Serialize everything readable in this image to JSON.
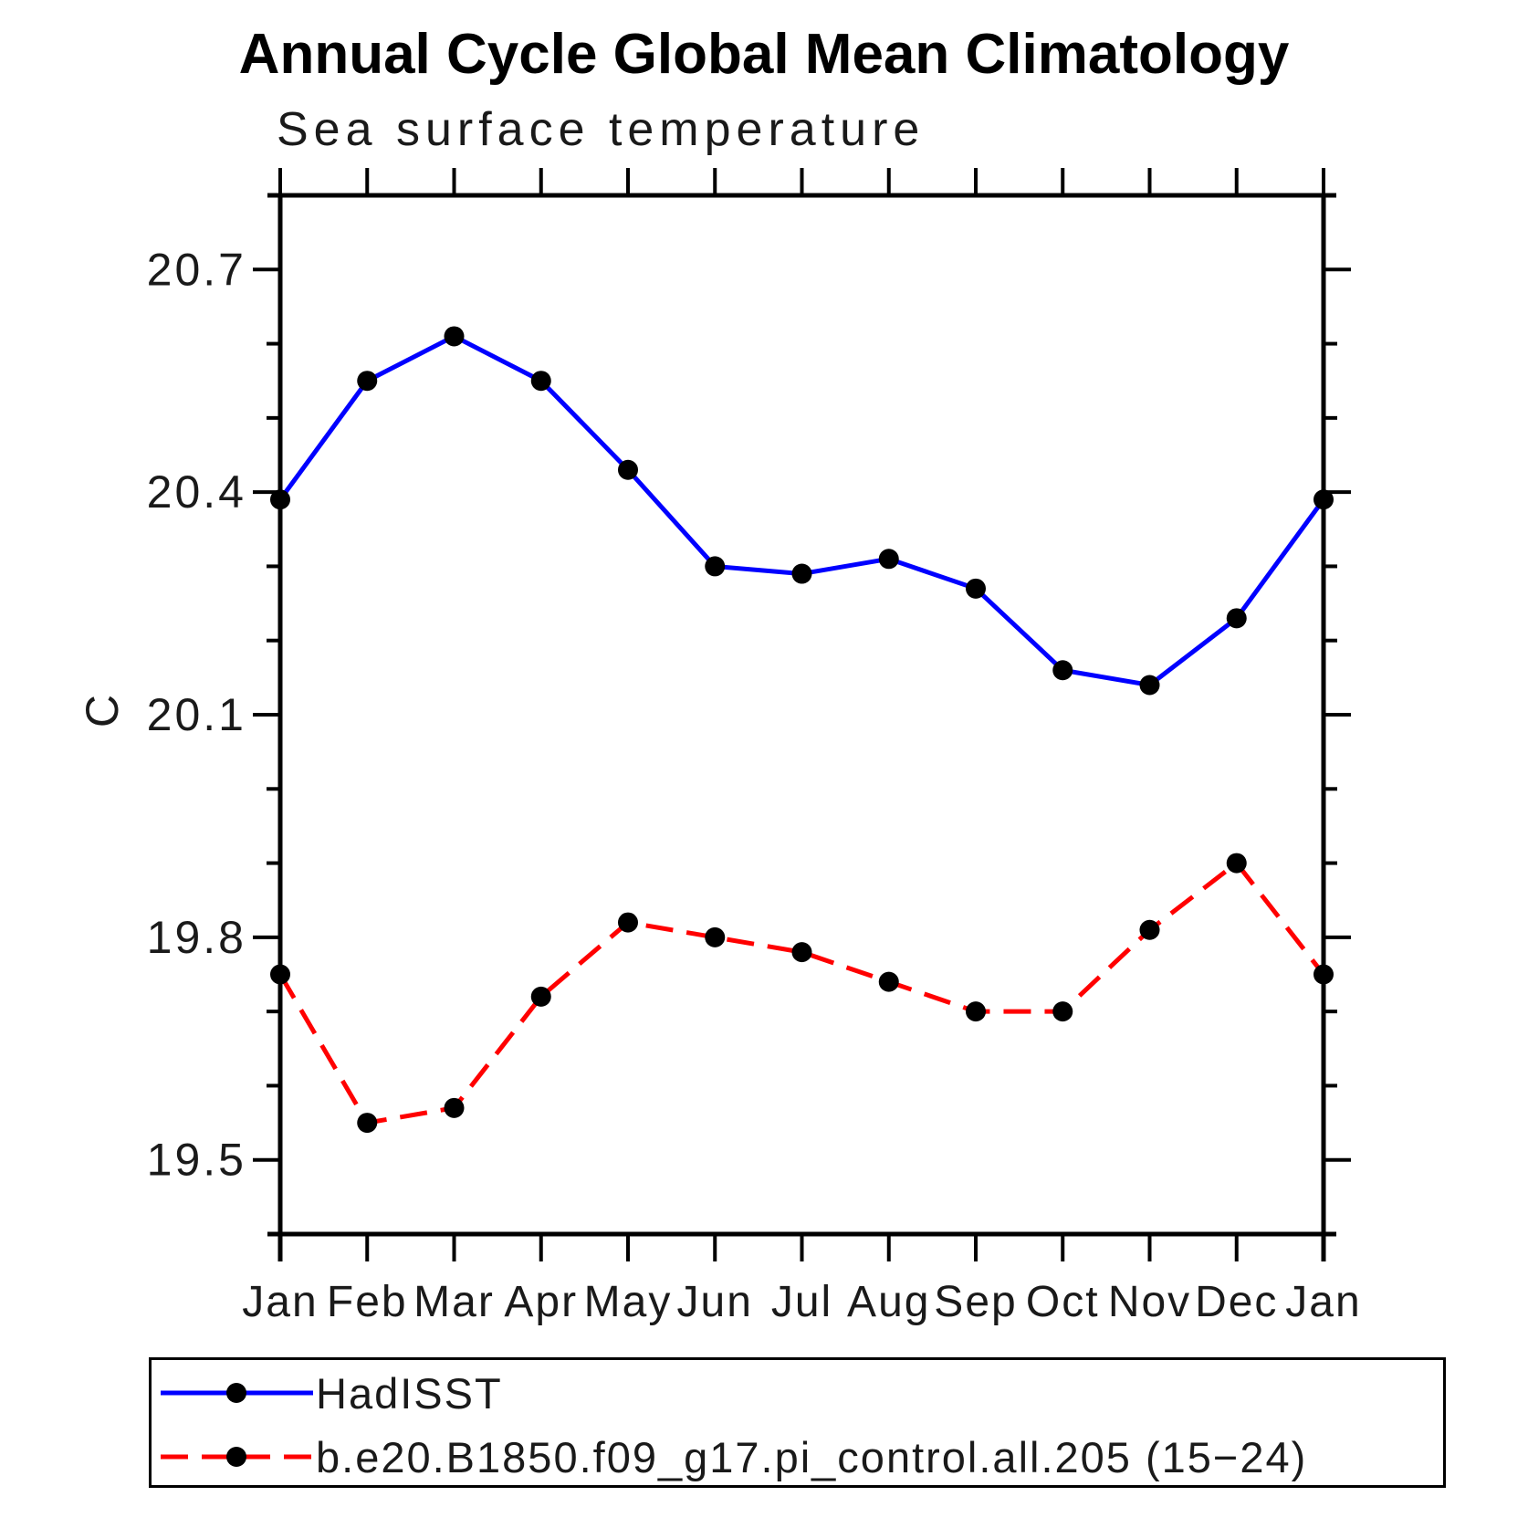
{
  "header": {
    "title": "Annual Cycle Global Mean Climatology",
    "subtitle": "Sea surface temperature"
  },
  "chart_data": {
    "type": "line",
    "title": "Annual Cycle Global Mean Climatology",
    "subtitle": "Sea surface temperature",
    "ylabel": "C",
    "xlabel": "",
    "grid": false,
    "legend_position": "bottom",
    "categories": [
      "Jan",
      "Feb",
      "Mar",
      "Apr",
      "May",
      "Jun",
      "Jul",
      "Aug",
      "Sep",
      "Oct",
      "Nov",
      "Dec",
      "Jan"
    ],
    "ylim": [
      19.4,
      20.8
    ],
    "yticks_major": [
      19.5,
      19.8,
      20.1,
      20.4,
      20.7
    ],
    "yticks_minor": [
      19.6,
      19.7,
      19.9,
      20.0,
      20.2,
      20.3,
      20.5,
      20.6
    ],
    "series": [
      {
        "name": "HadISST",
        "color": "#0000ff",
        "line_style": "solid",
        "marker": "filled-circle",
        "marker_color": "#000000",
        "values": [
          20.39,
          20.55,
          20.61,
          20.55,
          20.43,
          20.3,
          20.29,
          20.31,
          20.27,
          20.16,
          20.14,
          20.23,
          20.39
        ]
      },
      {
        "name": "b.e20.B1850.f09_g17.pi_control.all.205 (15−24)",
        "color": "#ff0000",
        "line_style": "dashed",
        "marker": "filled-circle",
        "marker_color": "#000000",
        "values": [
          19.75,
          19.55,
          19.57,
          19.72,
          19.82,
          19.8,
          19.78,
          19.74,
          19.7,
          19.7,
          19.81,
          19.9,
          19.75
        ]
      }
    ]
  },
  "colors": {
    "axis": "#000000",
    "background": "#ffffff",
    "hadisst_line": "#0000ff",
    "model_line": "#ff0000",
    "marker": "#000000"
  }
}
